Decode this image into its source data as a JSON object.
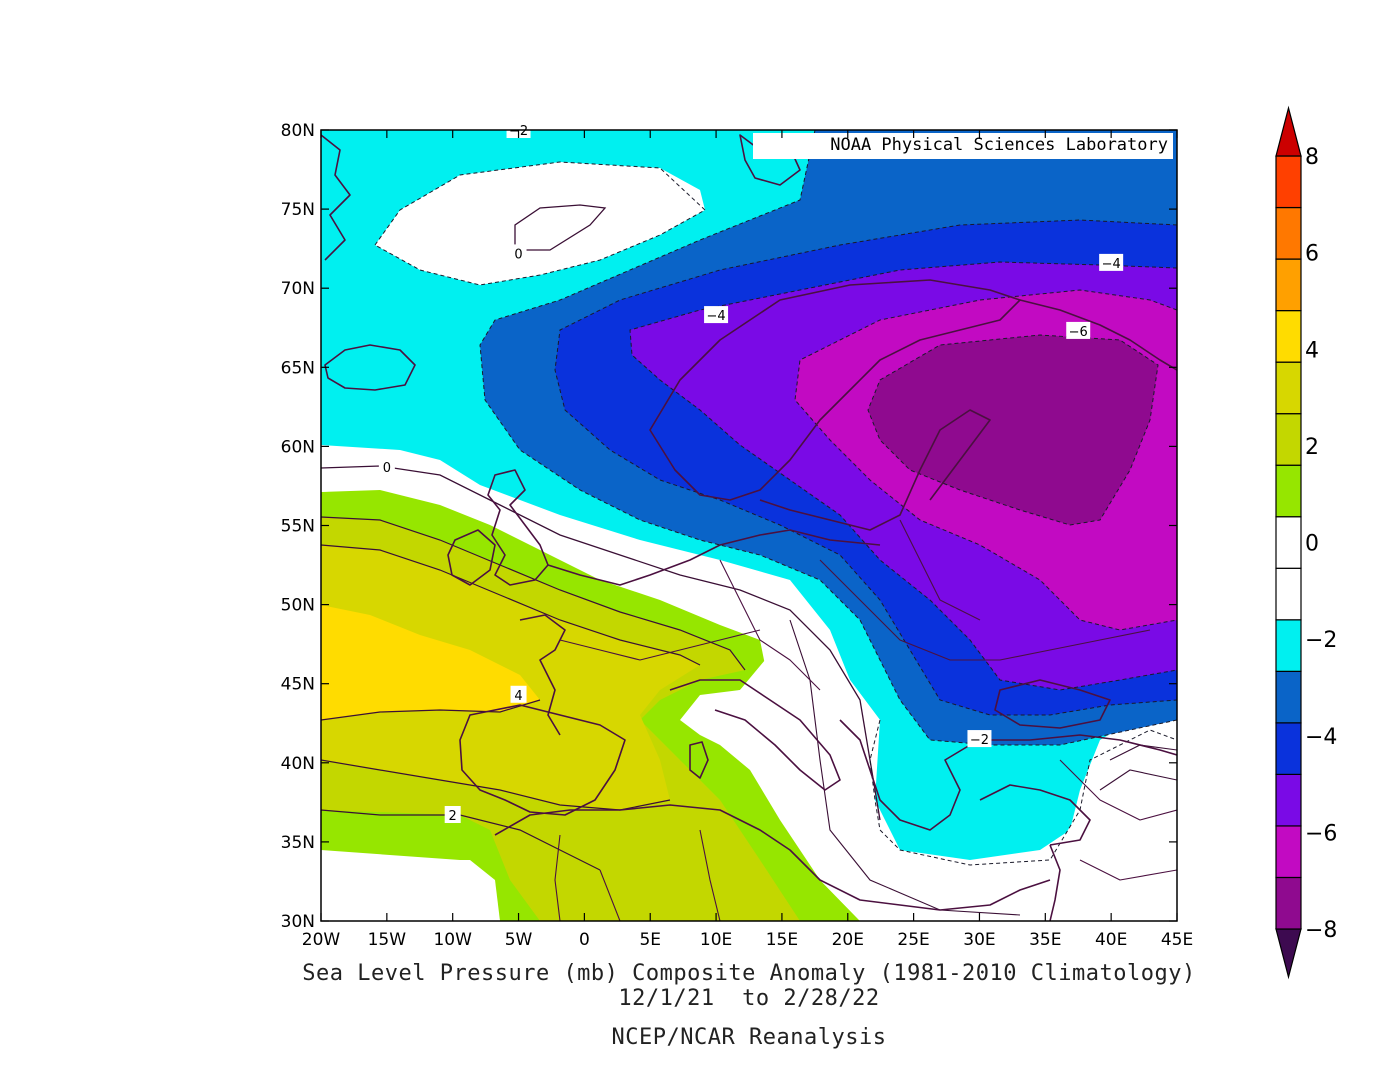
{
  "map": {
    "credit": "NOAA Physical Sciences Laboratory",
    "lon_ticks": [
      "20W",
      "15W",
      "10W",
      "5W",
      "0",
      "5E",
      "10E",
      "15E",
      "20E",
      "25E",
      "30E",
      "35E",
      "40E",
      "45E"
    ],
    "lat_ticks": [
      "80N",
      "75N",
      "70N",
      "65N",
      "60N",
      "55N",
      "50N",
      "45N",
      "40N",
      "35N",
      "30N"
    ],
    "extent": {
      "lon": [
        -20,
        45
      ],
      "lat": [
        30,
        80
      ]
    },
    "contour_labels": [
      {
        "text": "-2",
        "lon": -5,
        "lat": 80
      },
      {
        "text": "0",
        "lon": -5,
        "lat": 72.2
      },
      {
        "text": "-4",
        "lon": 40,
        "lat": 71.6
      },
      {
        "text": "-4",
        "lon": 10,
        "lat": 68.3
      },
      {
        "text": "-6",
        "lon": 37.5,
        "lat": 67.3
      },
      {
        "text": "0",
        "lon": -15,
        "lat": 58.7
      },
      {
        "text": "4",
        "lon": -5,
        "lat": 44.3
      },
      {
        "text": "2",
        "lon": -10,
        "lat": 36.7
      },
      {
        "text": "-2",
        "lon": 30,
        "lat": 41.5
      }
    ],
    "colors": {
      "ocean_land_base": "#ffffff",
      "coast": "#4b1040",
      "contour": "#3a0f35"
    }
  },
  "caption": {
    "title": "Sea Level Pressure (mb) Composite Anomaly (1981-2010 Climatology)",
    "dates": "12/1/21  to 2/28/22",
    "source": "NCEP/NCAR Reanalysis"
  },
  "colorbar": {
    "labels": [
      "8",
      "6",
      "4",
      "2",
      "0",
      "-2",
      "-4",
      "-6",
      "-8"
    ],
    "bins": [
      {
        "range": "<-8",
        "color": "#3d0a50"
      },
      {
        "range": "-8 to -7",
        "color": "#8f0a8f"
      },
      {
        "range": "-7 to -5",
        "color": "#c20ac2"
      },
      {
        "range": "-5 to -4",
        "color": "#7a0ae6"
      },
      {
        "range": "-4 to -3",
        "color": "#0a32dc"
      },
      {
        "range": "-3 to -2",
        "color": "#0a64c8"
      },
      {
        "range": "-2 to -1",
        "color": "#00f0f0"
      },
      {
        "range": "-1 to 0",
        "color": "#ffffff"
      },
      {
        "range": "0 to 1",
        "color": "#ffffff"
      },
      {
        "range": "1 to 2",
        "color": "#96e600"
      },
      {
        "range": "2 to 3",
        "color": "#c3d700"
      },
      {
        "range": "3 to 4",
        "color": "#d7d700"
      },
      {
        "range": "4 to 5",
        "color": "#ffdc00"
      },
      {
        "range": "5 to 6",
        "color": "#ffa000"
      },
      {
        "range": "6 to 7",
        "color": "#ff7800"
      },
      {
        "range": "7 to 8",
        "color": "#ff4000"
      },
      {
        "range": ">8",
        "color": "#cc0000"
      }
    ]
  }
}
